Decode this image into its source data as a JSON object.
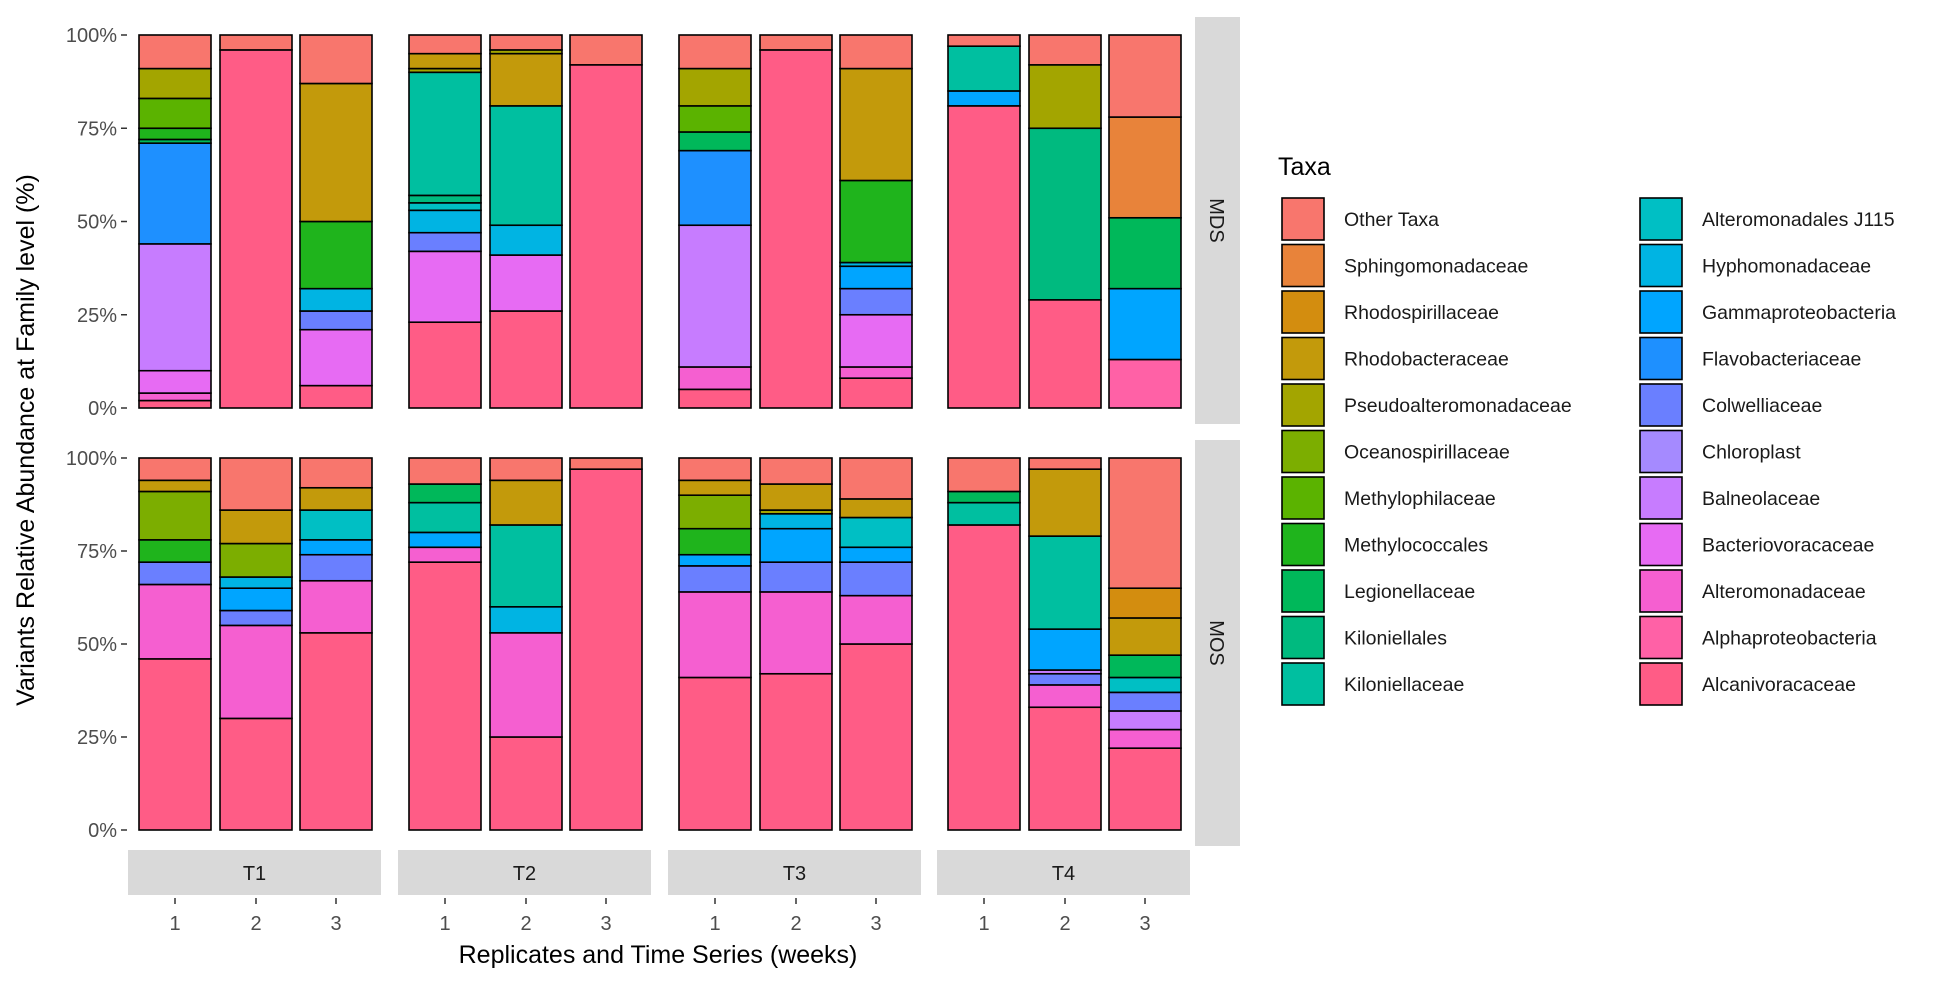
{
  "chart_data": {
    "type": "bar",
    "stacked": true,
    "ylabel": "Variants Relative Abundance at Family level (%)",
    "xlabel": "Replicates and Time Series (weeks)",
    "y_ticks": [
      "0%",
      "25%",
      "50%",
      "75%",
      "100%"
    ],
    "ylim": [
      0,
      100
    ],
    "facets_x": [
      "T1",
      "T2",
      "T3",
      "T4"
    ],
    "facets_y": [
      "MDS",
      "MOS"
    ],
    "replicates": [
      "1",
      "2",
      "3"
    ],
    "legend_title": "Taxa",
    "taxa": [
      {
        "name": "Other Taxa",
        "color": "#F8766D"
      },
      {
        "name": "Sphingomonadaceae",
        "color": "#E8833A"
      },
      {
        "name": "Rhodospirillaceae",
        "color": "#D38D0F"
      },
      {
        "name": "Rhodobacteraceae",
        "color": "#C39A0B"
      },
      {
        "name": "Pseudoalteromonadaceae",
        "color": "#A3A500"
      },
      {
        "name": "Oceanospirillaceae",
        "color": "#7CAE00"
      },
      {
        "name": "Methylophilaceae",
        "color": "#5BB300"
      },
      {
        "name": "Methylococcales",
        "color": "#1FB41C"
      },
      {
        "name": "Legionellaceae",
        "color": "#00B85A"
      },
      {
        "name": "Kiloniellales",
        "color": "#00BA7F"
      },
      {
        "name": "Kiloniellaceae",
        "color": "#00BFA0"
      },
      {
        "name": "Alteromonadales J115",
        "color": "#00BFC4"
      },
      {
        "name": "Hyphomonadaceae",
        "color": "#00B4E3"
      },
      {
        "name": "Gammaproteobacteria",
        "color": "#00A5FF"
      },
      {
        "name": "Flavobacteriaceae",
        "color": "#1E90FF"
      },
      {
        "name": "Colwelliaceae",
        "color": "#6A7FFF"
      },
      {
        "name": "Chloroplast",
        "color": "#A58AFF"
      },
      {
        "name": "Balneolaceae",
        "color": "#C77CFF"
      },
      {
        "name": "Bacteriovoracaceae",
        "color": "#E76BF3"
      },
      {
        "name": "Alteromonadaceae",
        "color": "#F55FD0"
      },
      {
        "name": "Alphaproteobacteria",
        "color": "#FF61A6"
      },
      {
        "name": "Alcanivoracaceae",
        "color": "#FF5C86"
      }
    ],
    "bars": [
      {
        "row": "MDS",
        "panel": "T1",
        "rep": "1",
        "segments": [
          [
            "Alcanivoracaceae",
            2
          ],
          [
            "Alteromonadaceae",
            2
          ],
          [
            "Bacteriovoracaceae",
            6
          ],
          [
            "Balneolaceae",
            34
          ],
          [
            "Flavobacteriaceae",
            27
          ],
          [
            "Legionellaceae",
            1
          ],
          [
            "Methylococcales",
            3
          ],
          [
            "Methylophilaceae",
            8
          ],
          [
            "Pseudoalteromonadaceae",
            8
          ],
          [
            "Other Taxa",
            9
          ]
        ]
      },
      {
        "row": "MDS",
        "panel": "T1",
        "rep": "2",
        "segments": [
          [
            "Alcanivoracaceae",
            96
          ],
          [
            "Other Taxa",
            4
          ]
        ]
      },
      {
        "row": "MDS",
        "panel": "T1",
        "rep": "3",
        "segments": [
          [
            "Alcanivoracaceae",
            6
          ],
          [
            "Bacteriovoracaceae",
            15
          ],
          [
            "Colwelliaceae",
            5
          ],
          [
            "Hyphomonadaceae",
            6
          ],
          [
            "Methylococcales",
            18
          ],
          [
            "Rhodobacteraceae",
            37
          ],
          [
            "Other Taxa",
            13
          ]
        ]
      },
      {
        "row": "MDS",
        "panel": "T2",
        "rep": "1",
        "segments": [
          [
            "Alcanivoracaceae",
            23
          ],
          [
            "Bacteriovoracaceae",
            19
          ],
          [
            "Colwelliaceae",
            5
          ],
          [
            "Hyphomonadaceae",
            6
          ],
          [
            "Alteromonadales J115",
            2
          ],
          [
            "Kiloniellales",
            2
          ],
          [
            "Kiloniellaceae",
            33
          ],
          [
            "Pseudoalteromonadaceae",
            1
          ],
          [
            "Rhodobacteraceae",
            4
          ],
          [
            "Other Taxa",
            5
          ]
        ]
      },
      {
        "row": "MDS",
        "panel": "T2",
        "rep": "2",
        "segments": [
          [
            "Alcanivoracaceae",
            26
          ],
          [
            "Bacteriovoracaceae",
            15
          ],
          [
            "Hyphomonadaceae",
            8
          ],
          [
            "Kiloniellaceae",
            32
          ],
          [
            "Rhodobacteraceae",
            14
          ],
          [
            "Pseudoalteromonadaceae",
            1
          ],
          [
            "Other Taxa",
            4
          ]
        ]
      },
      {
        "row": "MDS",
        "panel": "T2",
        "rep": "3",
        "segments": [
          [
            "Alcanivoracaceae",
            92
          ],
          [
            "Other Taxa",
            8
          ]
        ]
      },
      {
        "row": "MDS",
        "panel": "T3",
        "rep": "1",
        "segments": [
          [
            "Alcanivoracaceae",
            5
          ],
          [
            "Alteromonadaceae",
            6
          ],
          [
            "Balneolaceae",
            38
          ],
          [
            "Flavobacteriaceae",
            20
          ],
          [
            "Legionellaceae",
            5
          ],
          [
            "Methylophilaceae",
            7
          ],
          [
            "Pseudoalteromonadaceae",
            10
          ],
          [
            "Other Taxa",
            9
          ]
        ]
      },
      {
        "row": "MDS",
        "panel": "T3",
        "rep": "2",
        "segments": [
          [
            "Alcanivoracaceae",
            96
          ],
          [
            "Other Taxa",
            4
          ]
        ]
      },
      {
        "row": "MDS",
        "panel": "T3",
        "rep": "3",
        "segments": [
          [
            "Alcanivoracaceae",
            8
          ],
          [
            "Alteromonadaceae",
            3
          ],
          [
            "Bacteriovoracaceae",
            14
          ],
          [
            "Colwelliaceae",
            7
          ],
          [
            "Gammaproteobacteria",
            6
          ],
          [
            "Hyphomonadaceae",
            1
          ],
          [
            "Methylococcales",
            22
          ],
          [
            "Rhodobacteraceae",
            30
          ],
          [
            "Other Taxa",
            9
          ]
        ]
      },
      {
        "row": "MDS",
        "panel": "T4",
        "rep": "1",
        "segments": [
          [
            "Alcanivoracaceae",
            81
          ],
          [
            "Gammaproteobacteria",
            4
          ],
          [
            "Kiloniellaceae",
            12
          ],
          [
            "Other Taxa",
            3
          ]
        ]
      },
      {
        "row": "MDS",
        "panel": "T4",
        "rep": "2",
        "segments": [
          [
            "Alcanivoracaceae",
            29
          ],
          [
            "Kiloniellales",
            46
          ],
          [
            "Pseudoalteromonadaceae",
            17
          ],
          [
            "Other Taxa",
            8
          ]
        ]
      },
      {
        "row": "MDS",
        "panel": "T4",
        "rep": "3",
        "segments": [
          [
            "Alphaproteobacteria",
            13
          ],
          [
            "Gammaproteobacteria",
            19
          ],
          [
            "Legionellaceae",
            19
          ],
          [
            "Sphingomonadaceae",
            27
          ],
          [
            "Other Taxa",
            22
          ]
        ]
      },
      {
        "row": "MOS",
        "panel": "T1",
        "rep": "1",
        "segments": [
          [
            "Alcanivoracaceae",
            46
          ],
          [
            "Alteromonadaceae",
            20
          ],
          [
            "Colwelliaceae",
            6
          ],
          [
            "Methylococcales",
            6
          ],
          [
            "Oceanospirillaceae",
            13
          ],
          [
            "Rhodobacteraceae",
            3
          ],
          [
            "Other Taxa",
            6
          ]
        ]
      },
      {
        "row": "MOS",
        "panel": "T1",
        "rep": "2",
        "segments": [
          [
            "Alcanivoracaceae",
            30
          ],
          [
            "Alteromonadaceae",
            25
          ],
          [
            "Colwelliaceae",
            4
          ],
          [
            "Gammaproteobacteria",
            6
          ],
          [
            "Hyphomonadaceae",
            3
          ],
          [
            "Oceanospirillaceae",
            9
          ],
          [
            "Rhodobacteraceae",
            9
          ],
          [
            "Other Taxa",
            14
          ]
        ]
      },
      {
        "row": "MOS",
        "panel": "T1",
        "rep": "3",
        "segments": [
          [
            "Alcanivoracaceae",
            53
          ],
          [
            "Alteromonadaceae",
            14
          ],
          [
            "Colwelliaceae",
            7
          ],
          [
            "Gammaproteobacteria",
            4
          ],
          [
            "Alteromonadales J115",
            8
          ],
          [
            "Rhodobacteraceae",
            6
          ],
          [
            "Other Taxa",
            8
          ]
        ]
      },
      {
        "row": "MOS",
        "panel": "T2",
        "rep": "1",
        "segments": [
          [
            "Alcanivoracaceae",
            72
          ],
          [
            "Alteromonadaceae",
            4
          ],
          [
            "Gammaproteobacteria",
            4
          ],
          [
            "Kiloniellaceae",
            8
          ],
          [
            "Legionellaceae",
            5
          ],
          [
            "Other Taxa",
            7
          ]
        ]
      },
      {
        "row": "MOS",
        "panel": "T2",
        "rep": "2",
        "segments": [
          [
            "Alcanivoracaceae",
            25
          ],
          [
            "Alteromonadaceae",
            28
          ],
          [
            "Hyphomonadaceae",
            7
          ],
          [
            "Kiloniellaceae",
            22
          ],
          [
            "Rhodobacteraceae",
            12
          ],
          [
            "Other Taxa",
            6
          ]
        ]
      },
      {
        "row": "MOS",
        "panel": "T2",
        "rep": "3",
        "segments": [
          [
            "Alcanivoracaceae",
            97
          ],
          [
            "Other Taxa",
            3
          ]
        ]
      },
      {
        "row": "MOS",
        "panel": "T3",
        "rep": "1",
        "segments": [
          [
            "Alcanivoracaceae",
            41
          ],
          [
            "Alteromonadaceae",
            23
          ],
          [
            "Colwelliaceae",
            7
          ],
          [
            "Gammaproteobacteria",
            3
          ],
          [
            "Methylococcales",
            7
          ],
          [
            "Oceanospirillaceae",
            9
          ],
          [
            "Rhodobacteraceae",
            4
          ],
          [
            "Other Taxa",
            6
          ]
        ]
      },
      {
        "row": "MOS",
        "panel": "T3",
        "rep": "2",
        "segments": [
          [
            "Alcanivoracaceae",
            42
          ],
          [
            "Alteromonadaceae",
            22
          ],
          [
            "Colwelliaceae",
            8
          ],
          [
            "Gammaproteobacteria",
            9
          ],
          [
            "Hyphomonadaceae",
            4
          ],
          [
            "Pseudoalteromonadaceae",
            1
          ],
          [
            "Rhodobacteraceae",
            7
          ],
          [
            "Other Taxa",
            7
          ]
        ]
      },
      {
        "row": "MOS",
        "panel": "T3",
        "rep": "3",
        "segments": [
          [
            "Alcanivoracaceae",
            50
          ],
          [
            "Alteromonadaceae",
            13
          ],
          [
            "Colwelliaceae",
            9
          ],
          [
            "Gammaproteobacteria",
            4
          ],
          [
            "Alteromonadales J115",
            8
          ],
          [
            "Rhodobacteraceae",
            5
          ],
          [
            "Other Taxa",
            11
          ]
        ]
      },
      {
        "row": "MOS",
        "panel": "T4",
        "rep": "1",
        "segments": [
          [
            "Alcanivoracaceae",
            82
          ],
          [
            "Kiloniellaceae",
            6
          ],
          [
            "Legionellaceae",
            3
          ],
          [
            "Other Taxa",
            9
          ]
        ]
      },
      {
        "row": "MOS",
        "panel": "T4",
        "rep": "2",
        "segments": [
          [
            "Alcanivoracaceae",
            33
          ],
          [
            "Alteromonadaceae",
            6
          ],
          [
            "Colwelliaceae",
            3
          ],
          [
            "Balneolaceae",
            1
          ],
          [
            "Gammaproteobacteria",
            11
          ],
          [
            "Kiloniellaceae",
            25
          ],
          [
            "Rhodobacteraceae",
            18
          ],
          [
            "Other Taxa",
            3
          ]
        ]
      },
      {
        "row": "MOS",
        "panel": "T4",
        "rep": "3",
        "segments": [
          [
            "Alcanivoracaceae",
            22
          ],
          [
            "Alteromonadaceae",
            5
          ],
          [
            "Balneolaceae",
            5
          ],
          [
            "Colwelliaceae",
            5
          ],
          [
            "Alteromonadales J115",
            4
          ],
          [
            "Legionellaceae",
            6
          ],
          [
            "Rhodobacteraceae",
            10
          ],
          [
            "Rhodospirillaceae",
            8
          ],
          [
            "Other Taxa",
            35
          ]
        ]
      }
    ]
  }
}
